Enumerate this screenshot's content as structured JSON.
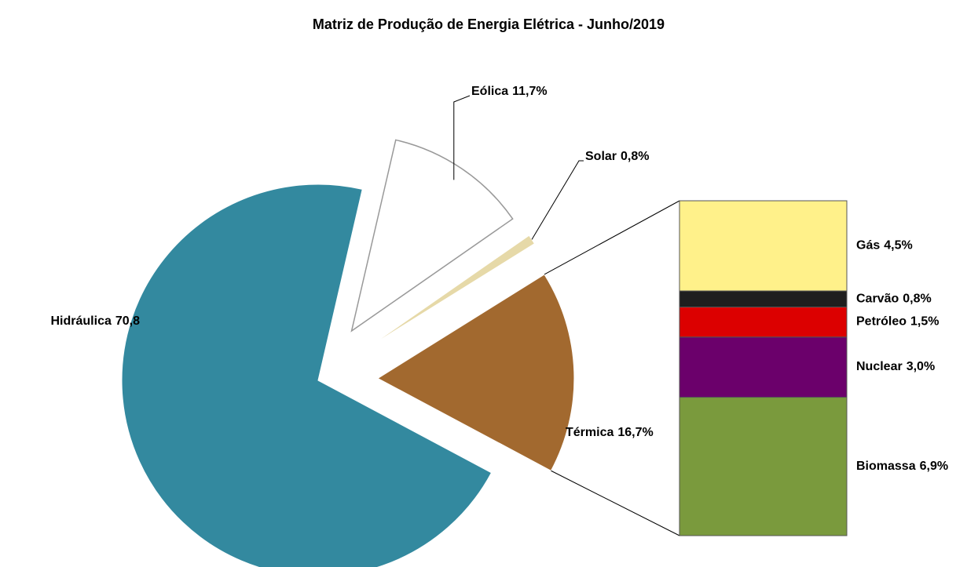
{
  "chart_data": {
    "type": "pie",
    "title": "Matriz de Produção de Energia Elétrica - Junho/2019",
    "categories": [
      "Hidráulica",
      "Eólica",
      "Solar",
      "Térmica"
    ],
    "values": [
      70.8,
      11.7,
      0.8,
      16.7
    ],
    "value_labels": [
      "70,8",
      "11,7%",
      "0,8%",
      "16,7%"
    ],
    "colors": [
      "#33899f",
      "#ffffff",
      "#e6d9a8",
      "#a2692f"
    ],
    "breakdown": {
      "categories": [
        "Gás",
        "Carvão",
        "Petróleo",
        "Nuclear",
        "Biomassa"
      ],
      "values": [
        4.5,
        0.8,
        1.5,
        3.0,
        6.9
      ],
      "value_labels": [
        "4,5%",
        "0,8%",
        "1,5%",
        "3,0%",
        "6,9%"
      ],
      "colors": [
        "#fff18a",
        "#1f1f1f",
        "#dc0000",
        "#6b006b",
        "#7a9a3d"
      ]
    }
  }
}
